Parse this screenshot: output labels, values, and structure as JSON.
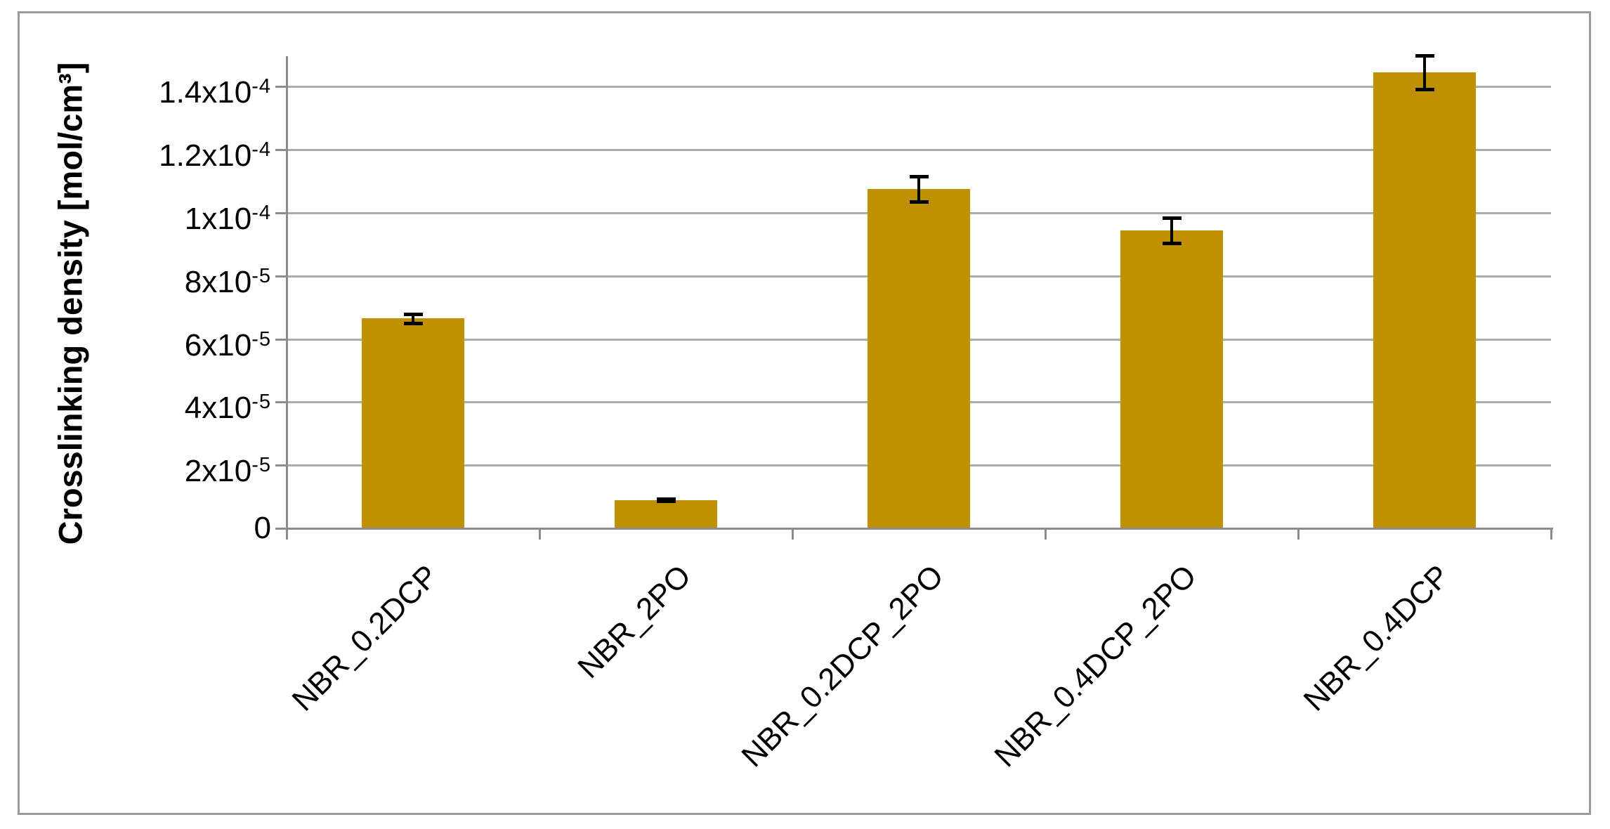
{
  "chart_data": {
    "type": "bar",
    "title": "",
    "xlabel": "",
    "ylabel": "Crosslinking density [mol/cm³]",
    "categories": [
      "NBR_0.2DCP",
      "NBR_2PO",
      "NBR_0.2DCP_2PO",
      "NBR_0.4DCP_2PO",
      "NBR_0.4DCP"
    ],
    "values": [
      6.65e-05,
      9e-06,
      0.0001075,
      9.45e-05,
      0.0001445
    ],
    "error_bars": [
      1.5e-06,
      4e-07,
      4e-06,
      4e-06,
      5.3e-06
    ],
    "ylim": [
      0,
      0.00015
    ],
    "grid": true,
    "legend": "none",
    "yticks": [
      {
        "value": 0,
        "base": "0",
        "sup": ""
      },
      {
        "value": 2e-05,
        "base": "2x10",
        "sup": "-5"
      },
      {
        "value": 4e-05,
        "base": "4x10",
        "sup": "-5"
      },
      {
        "value": 6e-05,
        "base": "6x10",
        "sup": "-5"
      },
      {
        "value": 8e-05,
        "base": "8x10",
        "sup": "-5"
      },
      {
        "value": 0.0001,
        "base": "1x10",
        "sup": "-4"
      },
      {
        "value": 0.00012,
        "base": "1.2x10",
        "sup": "-4"
      },
      {
        "value": 0.00014,
        "base": "1.4x10",
        "sup": "-4"
      }
    ],
    "colors": {
      "bar": "#BF9000",
      "error": "#000000",
      "gridline": "#ABABAB",
      "axis": "#8C8C8C",
      "border": "#9B9B9B",
      "text": "#000000",
      "background": "#FFFFFF"
    }
  }
}
